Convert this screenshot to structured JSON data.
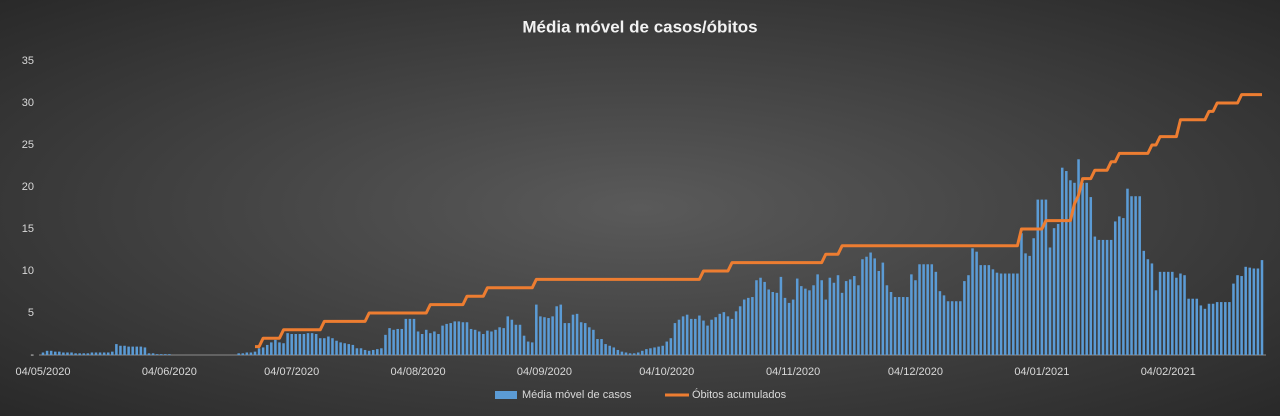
{
  "chart_data": {
    "type": "combo",
    "title": "Média móvel de casos/óbitos",
    "categories": [
      "04/05/2020",
      null,
      null,
      null,
      null,
      null,
      null,
      null,
      null,
      null,
      null,
      null,
      null,
      null,
      null,
      null,
      null,
      null,
      null,
      null,
      null,
      null,
      null,
      null,
      null,
      null,
      null,
      null,
      null,
      null,
      null,
      "04/06/2020",
      null,
      null,
      null,
      null,
      null,
      null,
      null,
      null,
      null,
      null,
      null,
      null,
      null,
      null,
      null,
      null,
      null,
      null,
      null,
      null,
      null,
      null,
      null,
      null,
      null,
      null,
      null,
      null,
      null,
      "04/07/2020",
      null,
      null,
      null,
      null,
      null,
      null,
      null,
      null,
      null,
      null,
      null,
      null,
      null,
      null,
      null,
      null,
      null,
      null,
      null,
      null,
      null,
      null,
      null,
      null,
      null,
      null,
      null,
      null,
      null,
      null,
      "04/08/2020",
      null,
      null,
      null,
      null,
      null,
      null,
      null,
      null,
      null,
      null,
      null,
      null,
      null,
      null,
      null,
      null,
      null,
      null,
      null,
      null,
      null,
      null,
      null,
      null,
      null,
      null,
      null,
      null,
      null,
      null,
      "04/09/2020",
      null,
      null,
      null,
      null,
      null,
      null,
      null,
      null,
      null,
      null,
      null,
      null,
      null,
      null,
      null,
      null,
      null,
      null,
      null,
      null,
      null,
      null,
      null,
      null,
      null,
      null,
      null,
      null,
      null,
      "04/10/2020",
      null,
      null,
      null,
      null,
      null,
      null,
      null,
      null,
      null,
      null,
      null,
      null,
      null,
      null,
      null,
      null,
      null,
      null,
      null,
      null,
      null,
      null,
      null,
      null,
      null,
      null,
      null,
      null,
      null,
      null,
      "04/11/2020",
      null,
      null,
      null,
      null,
      null,
      null,
      null,
      null,
      null,
      null,
      null,
      null,
      null,
      null,
      null,
      null,
      null,
      null,
      null,
      null,
      null,
      null,
      null,
      null,
      null,
      null,
      null,
      null,
      null,
      "04/12/2020",
      null,
      null,
      null,
      null,
      null,
      null,
      null,
      null,
      null,
      null,
      null,
      null,
      null,
      null,
      null,
      null,
      null,
      null,
      null,
      null,
      null,
      null,
      null,
      null,
      null,
      null,
      null,
      null,
      null,
      null,
      "04/01/2021",
      null,
      null,
      null,
      null,
      null,
      null,
      null,
      null,
      null,
      null,
      null,
      null,
      null,
      null,
      null,
      null,
      null,
      null,
      null,
      null,
      null,
      null,
      null,
      null,
      null,
      null,
      null,
      null,
      null,
      null,
      "04/02/2021",
      null,
      null,
      null,
      null,
      null,
      null,
      null,
      null,
      null,
      null,
      null,
      null,
      null,
      null,
      null,
      null,
      null,
      null,
      null,
      null,
      null,
      null,
      null
    ],
    "series": [
      {
        "name": "Média móvel de casos",
        "type": "bar",
        "color": "#5b9bd5",
        "values": [
          0.3,
          0.5,
          0.5,
          0.4,
          0.4,
          0.3,
          0.3,
          0.3,
          0.2,
          0.2,
          0.2,
          0.2,
          0.3,
          0.3,
          0.3,
          0.3,
          0.3,
          0.4,
          1.3,
          1.1,
          1.1,
          1.0,
          1.0,
          1.0,
          1.0,
          0.9,
          0.2,
          0.2,
          0.1,
          0.1,
          0.1,
          0.1,
          0,
          0,
          0,
          0,
          0,
          0,
          0,
          0,
          0,
          0,
          0,
          0,
          0,
          0,
          0,
          0,
          0.2,
          0.2,
          0.3,
          0.3,
          0.4,
          0.8,
          0.9,
          1.2,
          1.5,
          1.8,
          1.5,
          1.4,
          2.6,
          2.5,
          2.5,
          2.5,
          2.5,
          2.6,
          2.6,
          2.5,
          2.0,
          2.0,
          2.2,
          2.0,
          1.7,
          1.5,
          1.4,
          1.3,
          1.2,
          0.8,
          0.8,
          0.6,
          0.5,
          0.6,
          0.7,
          0.8,
          2.4,
          3.2,
          3.0,
          3.1,
          3.1,
          4.3,
          4.3,
          4.3,
          2.8,
          2.5,
          3.0,
          2.6,
          2.8,
          2.5,
          3.5,
          3.7,
          3.8,
          4.0,
          4.0,
          3.9,
          3.9,
          3.1,
          3.0,
          2.8,
          2.5,
          2.9,
          2.8,
          3.0,
          3.3,
          3.2,
          4.6,
          4.2,
          3.6,
          3.6,
          2.3,
          1.6,
          1.5,
          6.0,
          4.6,
          4.5,
          4.4,
          4.6,
          5.8,
          6.0,
          3.8,
          3.8,
          4.8,
          4.9,
          3.9,
          3.8,
          3.3,
          3.0,
          1.9,
          1.9,
          1.3,
          1.1,
          0.9,
          0.6,
          0.4,
          0.3,
          0.2,
          0.2,
          0.3,
          0.5,
          0.7,
          0.8,
          0.9,
          1.0,
          1.1,
          1.6,
          2.0,
          3.8,
          4.2,
          4.6,
          4.8,
          4.3,
          4.3,
          4.7,
          4.1,
          3.5,
          4.2,
          4.5,
          4.9,
          5.1,
          4.6,
          4.3,
          5.2,
          5.8,
          6.6,
          6.8,
          6.9,
          8.9,
          9.2,
          8.7,
          7.8,
          7.5,
          7.4,
          9.3,
          6.8,
          6.2,
          6.6,
          9.1,
          8.2,
          7.9,
          7.7,
          8.3,
          9.6,
          8.9,
          6.6,
          9.2,
          8.6,
          9.5,
          7.4,
          8.8,
          9.0,
          9.4,
          8.3,
          11.4,
          11.7,
          12.2,
          11.5,
          10.0,
          11.0,
          8.3,
          7.5,
          6.9,
          6.9,
          6.9,
          6.9,
          9.6,
          8.9,
          10.8,
          10.8,
          10.8,
          10.8,
          9.9,
          7.6,
          7.1,
          6.4,
          6.4,
          6.4,
          6.4,
          8.8,
          9.5,
          12.7,
          12.3,
          10.7,
          10.7,
          10.7,
          10.2,
          9.8,
          9.7,
          9.7,
          9.7,
          9.7,
          9.7,
          14.5,
          12.1,
          11.8,
          13.9,
          18.5,
          18.5,
          18.5,
          12.8,
          15.1,
          15.6,
          22.3,
          21.9,
          20.8,
          20.5,
          23.3,
          20.5,
          20.5,
          18.8,
          14.1,
          13.7,
          13.7,
          13.7,
          13.7,
          15.9,
          16.5,
          16.3,
          19.8,
          18.9,
          18.9,
          18.9,
          12.4,
          11.4,
          10.9,
          7.7,
          9.9,
          9.9,
          9.9,
          9.9,
          9.2,
          9.7,
          9.5,
          6.7,
          6.7,
          6.7,
          5.9,
          5.5,
          6.1,
          6.1,
          6.3,
          6.3,
          6.3,
          6.3,
          8.5,
          9.5,
          9.4,
          10.5,
          10.4,
          10.3,
          10.3,
          11.3
        ]
      },
      {
        "name": "Óbitos acumulados",
        "type": "line",
        "color": "#ed7d31",
        "values": [
          null,
          null,
          null,
          null,
          null,
          null,
          null,
          null,
          null,
          null,
          null,
          null,
          null,
          null,
          null,
          null,
          null,
          null,
          null,
          null,
          null,
          null,
          null,
          null,
          null,
          null,
          null,
          null,
          null,
          null,
          null,
          null,
          null,
          null,
          null,
          null,
          null,
          null,
          null,
          null,
          null,
          null,
          null,
          null,
          null,
          null,
          null,
          null,
          null,
          null,
          null,
          null,
          1,
          1,
          2,
          2,
          2,
          2,
          2,
          3,
          3,
          3,
          3,
          3,
          3,
          3,
          3,
          3,
          3,
          4,
          4,
          4,
          4,
          4,
          4,
          4,
          4,
          4,
          4,
          4,
          5,
          5,
          5,
          5,
          5,
          5,
          5,
          5,
          5,
          5,
          5,
          5,
          5,
          5,
          5,
          6,
          6,
          6,
          6,
          6,
          6,
          6,
          6,
          6,
          7,
          7,
          7,
          7,
          7,
          8,
          8,
          8,
          8,
          8,
          8,
          8,
          8,
          8,
          8,
          8,
          8,
          9,
          9,
          9,
          9,
          9,
          9,
          9,
          9,
          9,
          9,
          9,
          9,
          9,
          9,
          9,
          9,
          9,
          9,
          9,
          9,
          9,
          9,
          9,
          9,
          9,
          9,
          9,
          9,
          9,
          9,
          9,
          9,
          9,
          9,
          9,
          9,
          9,
          9,
          9,
          9,
          9,
          10,
          10,
          10,
          10,
          10,
          10,
          10,
          11,
          11,
          11,
          11,
          11,
          11,
          11,
          11,
          11,
          11,
          11,
          11,
          11,
          11,
          11,
          11,
          11,
          11,
          11,
          11,
          11,
          11,
          11,
          12,
          12,
          12,
          12,
          13,
          13,
          13,
          13,
          13,
          13,
          13,
          13,
          13,
          13,
          13,
          13,
          13,
          13,
          13,
          13,
          13,
          13,
          13,
          13,
          13,
          13,
          13,
          13,
          13,
          13,
          13,
          13,
          13,
          13,
          13,
          13,
          13,
          13,
          13,
          13,
          13,
          13,
          13,
          13,
          13,
          13,
          13,
          13,
          15,
          15,
          15,
          15,
          15,
          15,
          16,
          16,
          16,
          16,
          16,
          16,
          16,
          18,
          19,
          21,
          21,
          21,
          22,
          22,
          22,
          22,
          23,
          23,
          24,
          24,
          24,
          24,
          24,
          24,
          24,
          24,
          25,
          25,
          26,
          26,
          26,
          26,
          26,
          28,
          28,
          28,
          28,
          28,
          28,
          28,
          29,
          29,
          30,
          30,
          30,
          30,
          30,
          30,
          31,
          31,
          31,
          31,
          31,
          31
        ]
      }
    ],
    "ylim": [
      0,
      35
    ],
    "yticks": [
      {
        "value": 0,
        "label": "-"
      },
      5,
      10,
      15,
      20,
      25,
      30,
      35
    ],
    "grid": false
  }
}
